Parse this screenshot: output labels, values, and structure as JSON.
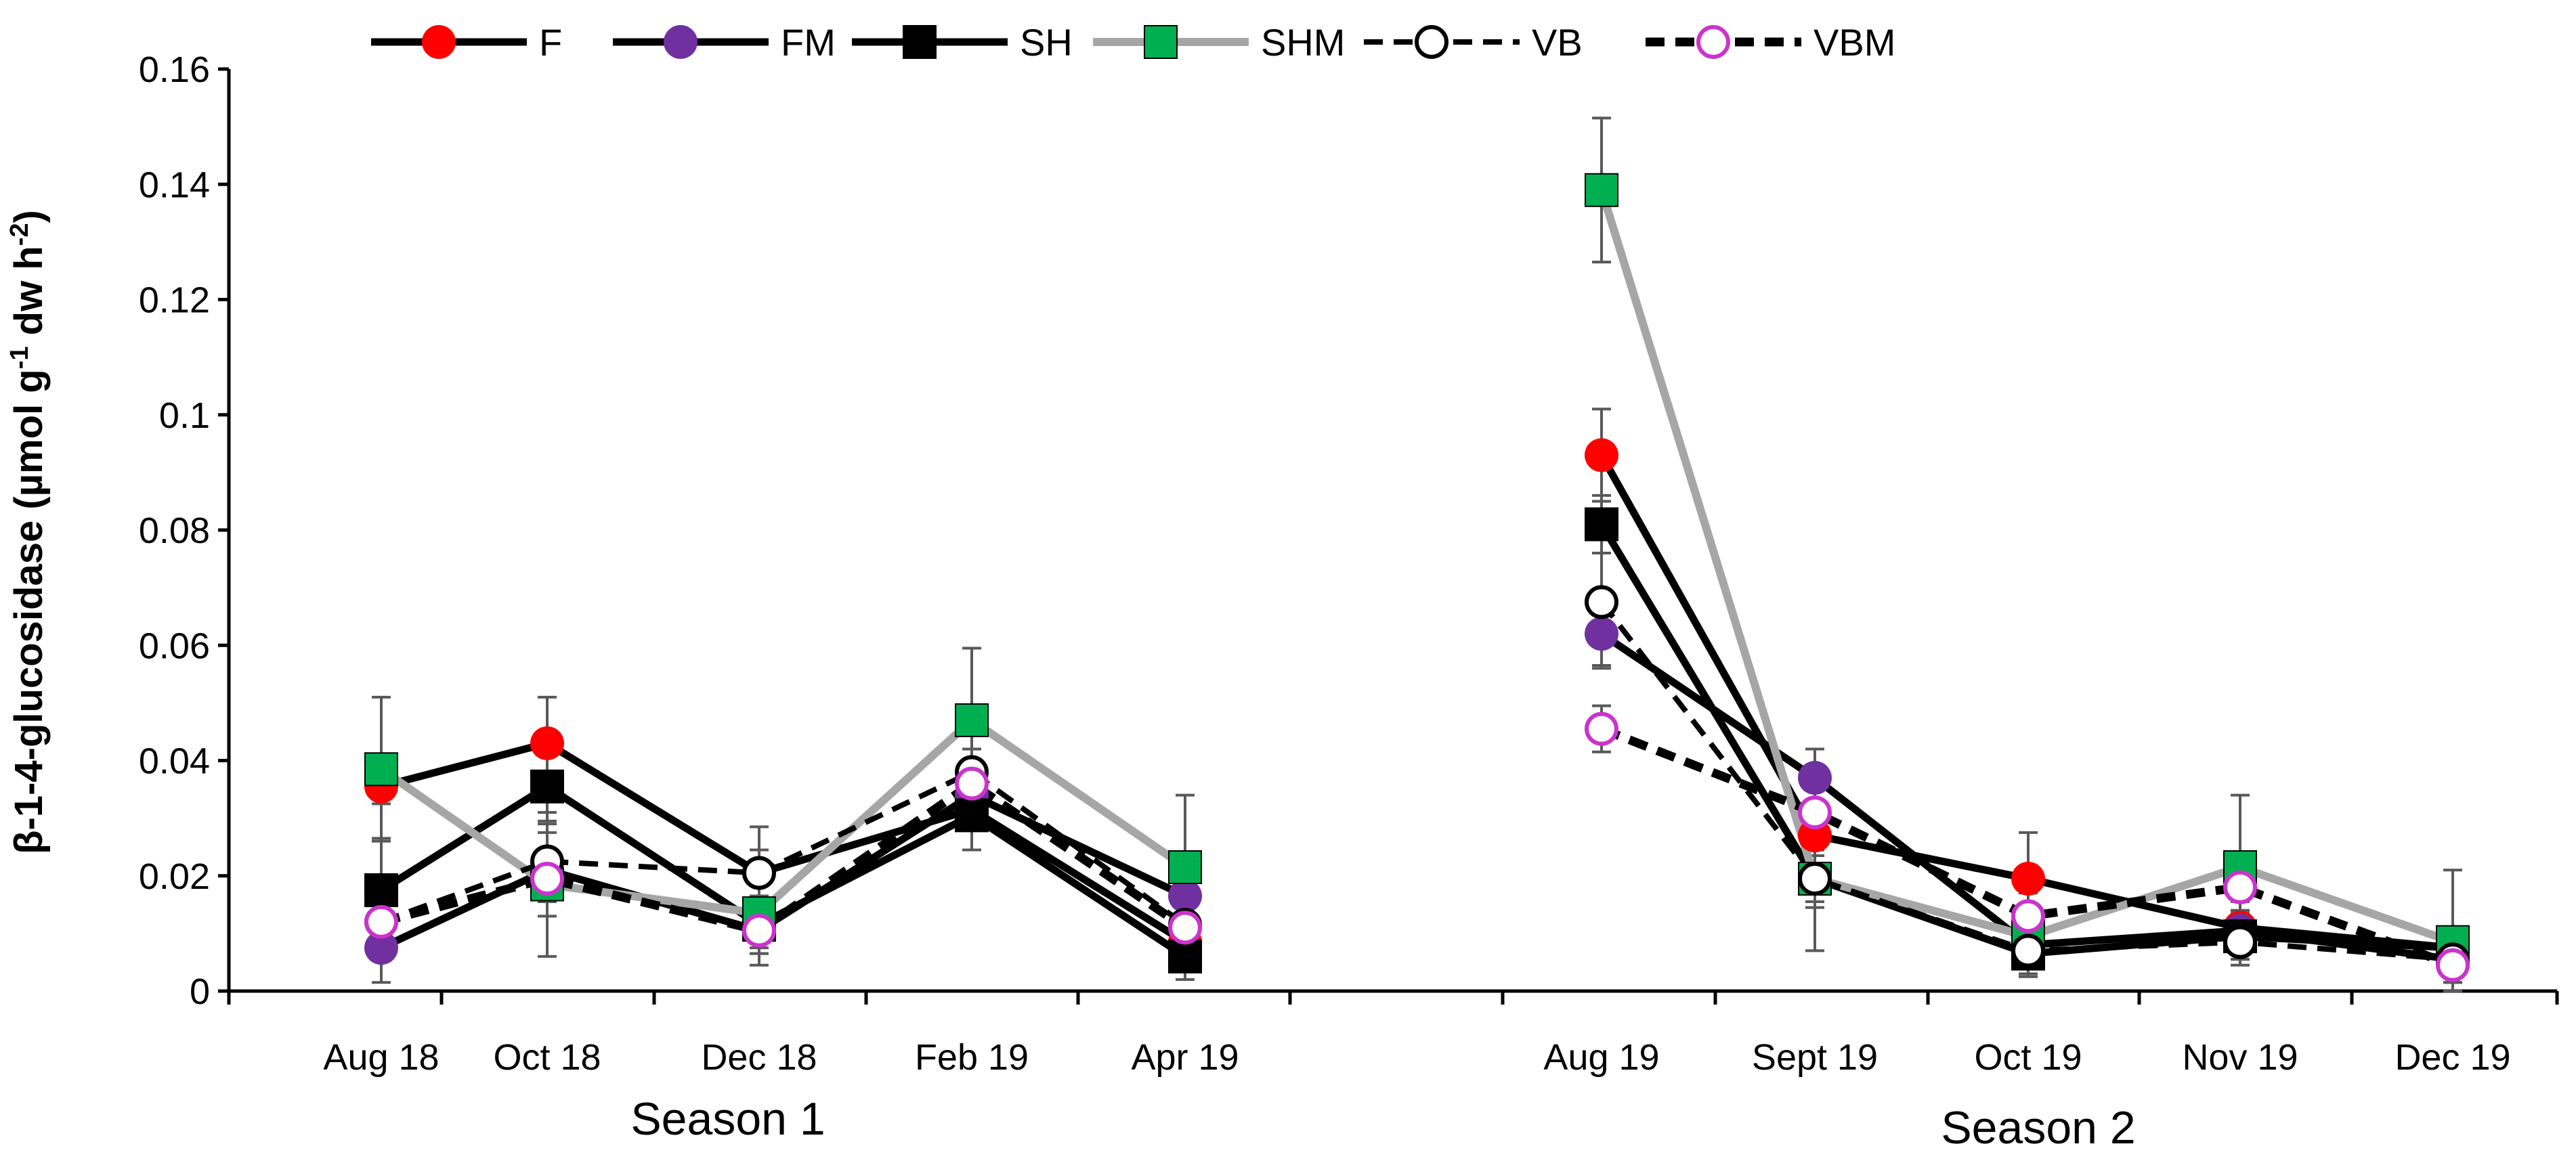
{
  "chart_data": {
    "type": "line",
    "title": "",
    "ylabel": {
      "main": "β-1-4-glucosidase  (µmol g",
      "sup1": "-1",
      "mid": " dw h",
      "sup2": "-2",
      "end": ")"
    },
    "ylim": [
      0,
      0.16
    ],
    "yticks": [
      0,
      0.02,
      0.04,
      0.06,
      0.08,
      0.1,
      0.12,
      0.14,
      0.16
    ],
    "ytick_labels": [
      "0",
      "0.02",
      "0.04",
      "0.06",
      "0.08",
      "0.1",
      "0.12",
      "0.14",
      "0.16"
    ],
    "categories": [
      "Aug 18",
      "Oct 18",
      "Dec 18",
      "Feb 19",
      "Apr 19",
      "Aug 19",
      "Sept 19",
      "Oct 19",
      "Nov 19",
      "Dec 19"
    ],
    "season_labels": [
      "Season 1",
      "Season 2"
    ],
    "legend_position": "top",
    "series": [
      {
        "name": "F",
        "color": "#ff0000",
        "line_color": "#000000",
        "dash": "solid",
        "marker": "circle-filled",
        "values": [
          0.0355,
          0.043,
          0.0205,
          0.0315,
          0.0085,
          0.093,
          0.027,
          0.0195,
          0.011,
          0.0075
        ],
        "errors": [
          0.003,
          0.008,
          0.008,
          0.003,
          0.003,
          0.008,
          0.005,
          0.008,
          0.003,
          0.002
        ]
      },
      {
        "name": "FM",
        "color": "#7030a0",
        "line_color": "#000000",
        "dash": "solid",
        "marker": "circle-filled",
        "values": [
          0.0075,
          0.021,
          0.0105,
          0.034,
          0.0165,
          0.062,
          0.037,
          0.008,
          0.0105,
          0.0055
        ],
        "errors": [
          0.006,
          0.008,
          0.006,
          0.005,
          0.005,
          0.006,
          0.005,
          0.004,
          0.005,
          0.003
        ]
      },
      {
        "name": "SH",
        "color": "#000000",
        "line_color": "#000000",
        "dash": "solid",
        "marker": "square-filled",
        "values": [
          0.0175,
          0.0355,
          0.0115,
          0.0305,
          0.006,
          0.081,
          0.0195,
          0.0065,
          0.0095,
          0.0075
        ],
        "errors": [
          0.009,
          0.006,
          0.005,
          0.006,
          0.004,
          0.005,
          0.005,
          0.004,
          0.004,
          0.003
        ]
      },
      {
        "name": "SHM",
        "color": "#00b050",
        "line_color": "#a6a6a6",
        "dash": "solid",
        "marker": "square-filled",
        "values": [
          0.0385,
          0.0185,
          0.0135,
          0.047,
          0.0215,
          0.139,
          0.0195,
          0.0095,
          0.0215,
          0.0085
        ],
        "errors": [
          0.0125,
          0.0125,
          0.006,
          0.0125,
          0.0125,
          0.0125,
          0.0125,
          0.005,
          0.0125,
          0.0125
        ]
      },
      {
        "name": "VB",
        "color": "#000000",
        "line_color": "#000000",
        "dash": "dashed",
        "marker": "circle-open",
        "values": [
          0.012,
          0.0225,
          0.0205,
          0.038,
          0.0115,
          0.0675,
          0.0195,
          0.007,
          0.0085,
          0.0055
        ],
        "errors": [
          0.004,
          0.005,
          0.004,
          0.004,
          0.004,
          0.011,
          0.004,
          0.004,
          0.004,
          0.004
        ]
      },
      {
        "name": "VBM",
        "color": "#cc33cc",
        "line_color": "#000000",
        "dash": "dashed",
        "marker": "circle-open",
        "values": [
          0.012,
          0.0195,
          0.0105,
          0.036,
          0.011,
          0.0455,
          0.031,
          0.013,
          0.018,
          0.0045
        ],
        "errors": [
          0.004,
          0.004,
          0.004,
          0.004,
          0.004,
          0.004,
          0.004,
          0.004,
          0.004,
          0.003
        ]
      }
    ]
  }
}
